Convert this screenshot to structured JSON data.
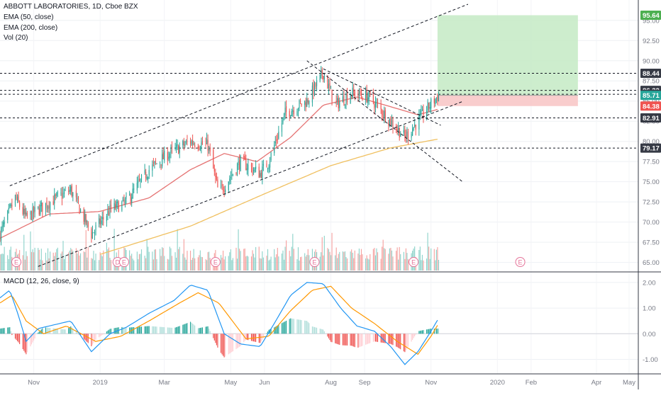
{
  "header": {
    "symbol_title": "ABBOTT LABORATORIES, 1D, Cboe BZX",
    "indicators": [
      "EMA (50, close)",
      "EMA (200, close)",
      "Vol (20)"
    ]
  },
  "macd": {
    "label": "MACD (12, 26, close, 9)"
  },
  "colors": {
    "up": "#26a69a",
    "down": "#ef5350",
    "up_vol": "#8fd3cb",
    "down_vol": "#f6a3a1",
    "ema50": "#e57373",
    "ema200": "#f0c060",
    "macd_line": "#2196f3",
    "signal_line": "#ff9800",
    "target_zone": "#c8ebc8",
    "stop_zone": "#f8c8c8",
    "trend": "#131722"
  },
  "chart_data": [
    {
      "type": "candlestick",
      "title": "ABBOTT LABORATORIES, 1D, Cboe BZX",
      "y_axis": {
        "min": 64,
        "max": 97,
        "ticks": [
          65.0,
          67.5,
          70.0,
          72.5,
          75.0,
          77.5,
          80.0,
          82.5,
          85.0,
          87.5,
          90.0,
          92.5,
          95.0
        ]
      },
      "x_axis": {
        "labels": [
          "Nov",
          "2019",
          "Mar",
          "May",
          "Jun",
          "Aug",
          "Sep",
          "Nov",
          "2020",
          "Feb",
          "Apr",
          "May"
        ]
      },
      "price_path": [
        {
          "date": "2018-10-01",
          "close": 68.5
        },
        {
          "date": "2018-10-15",
          "close": 73.0
        },
        {
          "date": "2018-10-25",
          "close": 70.5
        },
        {
          "date": "2018-11-10",
          "close": 72.0
        },
        {
          "date": "2018-12-05",
          "close": 74.0
        },
        {
          "date": "2018-12-24",
          "close": 68.5
        },
        {
          "date": "2019-01-10",
          "close": 71.5
        },
        {
          "date": "2019-01-25",
          "close": 72.5
        },
        {
          "date": "2019-02-15",
          "close": 76.5
        },
        {
          "date": "2019-03-05",
          "close": 78.5
        },
        {
          "date": "2019-03-25",
          "close": 80.0
        },
        {
          "date": "2019-04-10",
          "close": 79.5
        },
        {
          "date": "2019-04-20",
          "close": 73.5
        },
        {
          "date": "2019-05-10",
          "close": 77.5
        },
        {
          "date": "2019-05-28",
          "close": 76.0
        },
        {
          "date": "2019-06-05",
          "close": 77.5
        },
        {
          "date": "2019-06-20",
          "close": 83.5
        },
        {
          "date": "2019-07-10",
          "close": 85.0
        },
        {
          "date": "2019-07-25",
          "close": 88.5
        },
        {
          "date": "2019-08-05",
          "close": 84.5
        },
        {
          "date": "2019-08-20",
          "close": 86.0
        },
        {
          "date": "2019-09-05",
          "close": 85.5
        },
        {
          "date": "2019-09-25",
          "close": 82.5
        },
        {
          "date": "2019-10-08",
          "close": 80.5
        },
        {
          "date": "2019-10-20",
          "close": 82.5
        },
        {
          "date": "2019-10-31",
          "close": 84.5
        },
        {
          "date": "2019-11-08",
          "close": 85.7
        }
      ],
      "ema50_path": [
        {
          "date": "2018-10-01",
          "value": 68.0
        },
        {
          "date": "2018-11-15",
          "value": 71.0
        },
        {
          "date": "2018-12-31",
          "value": 71.3
        },
        {
          "date": "2019-02-15",
          "value": 73.0
        },
        {
          "date": "2019-03-25",
          "value": 76.5
        },
        {
          "date": "2019-04-25",
          "value": 78.5
        },
        {
          "date": "2019-05-25",
          "value": 77.5
        },
        {
          "date": "2019-06-25",
          "value": 80.5
        },
        {
          "date": "2019-07-25",
          "value": 84.5
        },
        {
          "date": "2019-08-25",
          "value": 85.5
        },
        {
          "date": "2019-09-25",
          "value": 84.3
        },
        {
          "date": "2019-10-20",
          "value": 83.3
        },
        {
          "date": "2019-11-08",
          "value": 84.0
        }
      ],
      "ema200_path": [
        {
          "date": "2019-01-01",
          "value": 66.0
        },
        {
          "date": "2019-03-25",
          "value": 69.5
        },
        {
          "date": "2019-06-01",
          "value": 73.5
        },
        {
          "date": "2019-08-01",
          "value": 77.0
        },
        {
          "date": "2019-09-25",
          "value": 79.2
        },
        {
          "date": "2019-11-08",
          "value": 80.3
        }
      ],
      "horizontal_levels": [
        88.44,
        86.32,
        85.84,
        82.91,
        79.17
      ],
      "trend_lines": [
        {
          "from": {
            "date": "2018-10-10",
            "value": 74.5
          },
          "to": {
            "date": "2019-12-05",
            "value": 97.0
          }
        },
        {
          "from": {
            "date": "2018-11-05",
            "value": 64.5
          },
          "to": {
            "date": "2019-12-01",
            "value": 85.0
          }
        },
        {
          "from": {
            "date": "2019-07-10",
            "value": 90.0
          },
          "to": {
            "date": "2019-11-30",
            "value": 75.0
          }
        },
        {
          "from": {
            "date": "2019-07-25",
            "value": 89.0
          },
          "to": {
            "date": "2019-11-10",
            "value": 82.0
          }
        }
      ],
      "long_position": {
        "start": "2019-11-07",
        "end": "2020-03-15",
        "target": 95.64,
        "entry": 85.71,
        "stop": 84.38
      },
      "price_labels": [
        {
          "value": 95.64,
          "text": "95.64",
          "color": "#4caf50"
        },
        {
          "value": 88.44,
          "text": "88.44",
          "color": "#363a45"
        },
        {
          "value": 86.32,
          "text": "86.32",
          "color": "#363a45"
        },
        {
          "value": 85.84,
          "text": "85.84",
          "color": "#363a45"
        },
        {
          "value": 85.71,
          "text": "85.71",
          "color": "#26a69a"
        },
        {
          "value": 84.38,
          "text": "84.38",
          "color": "#ef5350"
        },
        {
          "value": 82.91,
          "text": "82.91",
          "color": "#363a45"
        },
        {
          "value": 79.17,
          "text": "79.17",
          "color": "#363a45"
        }
      ],
      "earnings_markers": [
        {
          "date": "2018-10-16",
          "label": "E"
        },
        {
          "date": "2019-01-17",
          "label": "D"
        },
        {
          "date": "2019-01-23",
          "label": "E"
        },
        {
          "date": "2019-04-17",
          "label": "E"
        },
        {
          "date": "2019-07-17",
          "label": "E"
        },
        {
          "date": "2019-10-16",
          "label": "E"
        },
        {
          "date": "2020-01-22",
          "label": "E"
        }
      ]
    },
    {
      "type": "macd",
      "title": "MACD (12, 26, close, 9)",
      "y_axis": {
        "min": -1.4,
        "max": 2.3,
        "ticks": [
          -1.0,
          0.0,
          1.0,
          2.0
        ]
      },
      "macd_path": [
        {
          "date": "2018-10-01",
          "value": 1.4
        },
        {
          "date": "2018-10-10",
          "value": 1.7
        },
        {
          "date": "2018-10-18",
          "value": 0.7
        },
        {
          "date": "2018-10-25",
          "value": -0.3
        },
        {
          "date": "2018-11-05",
          "value": 0.2
        },
        {
          "date": "2018-11-20",
          "value": 0.35
        },
        {
          "date": "2018-12-05",
          "value": 0.5
        },
        {
          "date": "2018-12-24",
          "value": -0.7
        },
        {
          "date": "2019-01-10",
          "value": 0.0
        },
        {
          "date": "2019-01-25",
          "value": 0.25
        },
        {
          "date": "2019-02-15",
          "value": 0.8
        },
        {
          "date": "2019-03-10",
          "value": 1.3
        },
        {
          "date": "2019-03-25",
          "value": 1.9
        },
        {
          "date": "2019-04-10",
          "value": 1.7
        },
        {
          "date": "2019-04-25",
          "value": 0.0
        },
        {
          "date": "2019-05-10",
          "value": -0.4
        },
        {
          "date": "2019-05-28",
          "value": -0.5
        },
        {
          "date": "2019-06-10",
          "value": 0.4
        },
        {
          "date": "2019-06-25",
          "value": 1.5
        },
        {
          "date": "2019-07-10",
          "value": 2.0
        },
        {
          "date": "2019-07-25",
          "value": 1.95
        },
        {
          "date": "2019-08-10",
          "value": 1.0
        },
        {
          "date": "2019-08-25",
          "value": 0.3
        },
        {
          "date": "2019-09-10",
          "value": 0.1
        },
        {
          "date": "2019-09-25",
          "value": -0.5
        },
        {
          "date": "2019-10-08",
          "value": -1.2
        },
        {
          "date": "2019-10-20",
          "value": -0.7
        },
        {
          "date": "2019-11-01",
          "value": 0.1
        },
        {
          "date": "2019-11-08",
          "value": 0.6
        }
      ],
      "signal_path": [
        {
          "date": "2018-10-01",
          "value": 1.2
        },
        {
          "date": "2018-10-12",
          "value": 1.5
        },
        {
          "date": "2018-10-25",
          "value": 0.5
        },
        {
          "date": "2018-11-10",
          "value": 0.0
        },
        {
          "date": "2018-12-01",
          "value": 0.3
        },
        {
          "date": "2018-12-28",
          "value": -0.3
        },
        {
          "date": "2019-01-20",
          "value": -0.1
        },
        {
          "date": "2019-02-15",
          "value": 0.5
        },
        {
          "date": "2019-03-15",
          "value": 1.2
        },
        {
          "date": "2019-04-01",
          "value": 1.6
        },
        {
          "date": "2019-04-20",
          "value": 1.2
        },
        {
          "date": "2019-05-15",
          "value": -0.2
        },
        {
          "date": "2019-06-05",
          "value": -0.1
        },
        {
          "date": "2019-06-25",
          "value": 0.9
        },
        {
          "date": "2019-07-15",
          "value": 1.7
        },
        {
          "date": "2019-08-01",
          "value": 1.85
        },
        {
          "date": "2019-08-20",
          "value": 1.0
        },
        {
          "date": "2019-09-10",
          "value": 0.4
        },
        {
          "date": "2019-10-01",
          "value": -0.3
        },
        {
          "date": "2019-10-20",
          "value": -0.8
        },
        {
          "date": "2019-11-01",
          "value": -0.1
        },
        {
          "date": "2019-11-08",
          "value": 0.4
        }
      ]
    }
  ]
}
